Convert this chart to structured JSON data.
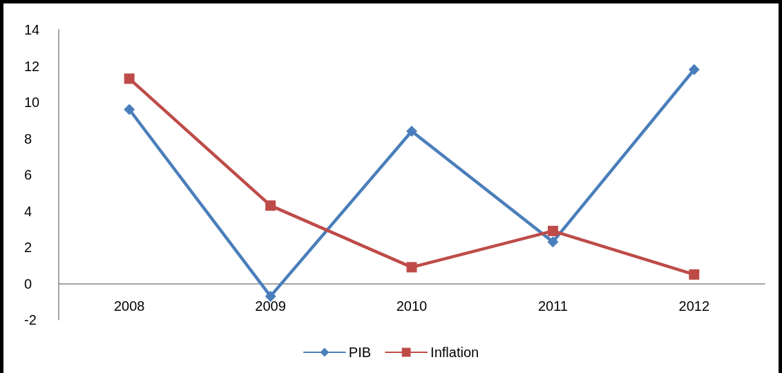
{
  "chart_data": {
    "type": "line",
    "categories": [
      "2008",
      "2009",
      "2010",
      "2011",
      "2012"
    ],
    "series": [
      {
        "name": "PIB",
        "color": "#4a7ebb",
        "marker": "diamond",
        "values": [
          9.6,
          -0.7,
          8.4,
          2.3,
          11.8
        ]
      },
      {
        "name": "Inflation",
        "color": "#be4b48",
        "marker": "square",
        "values": [
          11.3,
          4.3,
          0.9,
          2.9,
          0.5
        ]
      }
    ],
    "ylim": [
      -2,
      14
    ],
    "yticks": [
      -2,
      0,
      2,
      4,
      6,
      8,
      10,
      12,
      14
    ],
    "grid": false,
    "legend": "bottom",
    "line_style": "solid"
  }
}
